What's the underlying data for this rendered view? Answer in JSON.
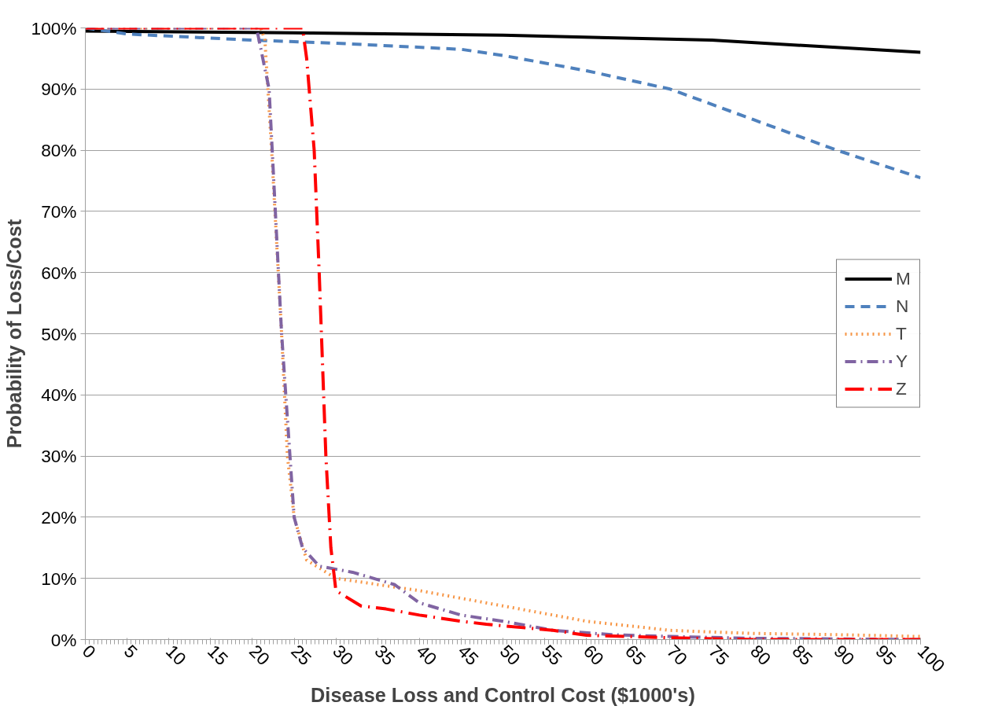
{
  "chart_data": {
    "type": "line",
    "xlabel": "Disease Loss and Control Cost ($1000's)",
    "ylabel": "Probability of Loss/Cost",
    "xlim": [
      0,
      100
    ],
    "xticks": [
      0,
      5,
      10,
      15,
      20,
      25,
      30,
      35,
      40,
      45,
      50,
      55,
      60,
      65,
      70,
      75,
      80,
      85,
      90,
      95,
      100
    ],
    "ylim": [
      0,
      100
    ],
    "yticks": [
      {
        "value": 0,
        "label": "0%"
      },
      {
        "value": 10,
        "label": "10%"
      },
      {
        "value": 20,
        "label": "20%"
      },
      {
        "value": 30,
        "label": "30%"
      },
      {
        "value": 40,
        "label": "40%"
      },
      {
        "value": 50,
        "label": "50%"
      },
      {
        "value": 60,
        "label": "60%"
      },
      {
        "value": 70,
        "label": "70%"
      },
      {
        "value": 80,
        "label": "80%"
      },
      {
        "value": 90,
        "label": "90%"
      },
      {
        "value": 100,
        "label": "100%"
      }
    ],
    "grid": "y",
    "legend": "right",
    "marker": "none",
    "series": [
      {
        "name": "M",
        "color": "#000000",
        "line_style": "solid",
        "x": [
          0,
          25,
          50,
          75,
          100
        ],
        "values": [
          99.5,
          99.2,
          98.8,
          98,
          96
        ]
      },
      {
        "name": "N",
        "color": "#4f81bd",
        "line_style": "dashed",
        "x": [
          0,
          5,
          20,
          30,
          45,
          50,
          60,
          70,
          80,
          90,
          100
        ],
        "values": [
          100,
          99,
          98,
          97.5,
          96.5,
          95.5,
          93,
          90,
          85,
          80,
          75.5
        ]
      },
      {
        "name": "T",
        "color": "#f79646",
        "line_style": "dotted",
        "x": [
          0,
          21,
          21.5,
          22.3,
          23.5,
          24.2,
          25,
          26.5,
          30,
          40,
          50,
          60,
          70,
          80,
          90,
          100
        ],
        "values": [
          100,
          100,
          98,
          80,
          50,
          30,
          20,
          13,
          10,
          8,
          5.5,
          3,
          1.5,
          1,
          0.8,
          0.5
        ]
      },
      {
        "name": "Y",
        "color": "#8064a2",
        "line_style": "dashdot",
        "x": [
          0,
          20.5,
          22,
          23.5,
          25,
          26,
          28,
          32,
          37,
          40,
          45,
          50,
          56,
          63,
          70,
          80,
          100
        ],
        "values": [
          100,
          100,
          90,
          50,
          20,
          15,
          12,
          11,
          9,
          6,
          4,
          3,
          1.5,
          0.8,
          0.5,
          0.2,
          0
        ]
      },
      {
        "name": "Z",
        "color": "#ff0000",
        "line_style": "longdashdot",
        "x": [
          0,
          26,
          26.5,
          27.4,
          28,
          28.8,
          29.4,
          30,
          33,
          36,
          40,
          45,
          48,
          56,
          60,
          65,
          70,
          80,
          100
        ],
        "values": [
          100,
          100,
          95,
          80,
          60,
          30,
          15,
          8,
          5.5,
          5,
          4,
          3,
          2.5,
          1.5,
          0.7,
          0.5,
          0.3,
          0,
          0
        ]
      }
    ]
  }
}
